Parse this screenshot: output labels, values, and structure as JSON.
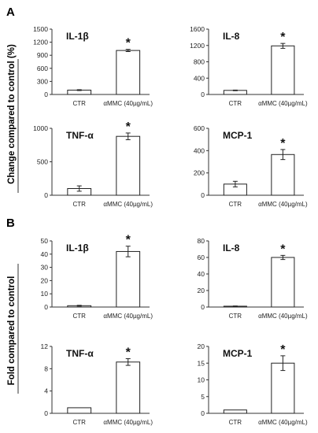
{
  "panels": [
    {
      "letter": "A",
      "ylabel": "Change compared to control (%)"
    },
    {
      "letter": "B",
      "ylabel": "Fold compared to control"
    }
  ],
  "chart_data": [
    {
      "panel": "A",
      "type": "bar",
      "title": "IL-1β",
      "categories": [
        "CTR",
        "αMMC (40µg/mL)"
      ],
      "values": [
        100,
        1010
      ],
      "errors": [
        10,
        25
      ],
      "ylim": [
        0,
        1500
      ],
      "yticks": [
        0,
        300,
        600,
        900,
        1200,
        1500
      ],
      "significance": [
        "",
        "*"
      ]
    },
    {
      "panel": "A",
      "type": "bar",
      "title": "IL-8",
      "categories": [
        "CTR",
        "αMMC (40µg/mL)"
      ],
      "values": [
        100,
        1190
      ],
      "errors": [
        8,
        60
      ],
      "ylim": [
        0,
        1600
      ],
      "yticks": [
        0,
        400,
        800,
        1200,
        1600
      ],
      "significance": [
        "",
        "*"
      ]
    },
    {
      "panel": "A",
      "type": "bar",
      "title": "TNF-α",
      "categories": [
        "CTR",
        "αMMC (40µg/mL)"
      ],
      "values": [
        100,
        880
      ],
      "errors": [
        40,
        50
      ],
      "ylim": [
        0,
        1000
      ],
      "yticks": [
        0,
        500,
        1000
      ],
      "significance": [
        "",
        "*"
      ]
    },
    {
      "panel": "A",
      "type": "bar",
      "title": "MCP-1",
      "categories": [
        "CTR",
        "αMMC (40µg/mL)"
      ],
      "values": [
        100,
        365
      ],
      "errors": [
        25,
        45
      ],
      "ylim": [
        0,
        600
      ],
      "yticks": [
        0,
        200,
        400,
        600
      ],
      "significance": [
        "",
        "*"
      ]
    },
    {
      "panel": "B",
      "type": "bar",
      "title": "IL-1β",
      "categories": [
        "CTR",
        "αMMC (40µg/mL)"
      ],
      "values": [
        1,
        42
      ],
      "errors": [
        0.3,
        4
      ],
      "ylim": [
        0,
        50
      ],
      "yticks": [
        0,
        10,
        20,
        30,
        40,
        50
      ],
      "significance": [
        "",
        "*"
      ]
    },
    {
      "panel": "B",
      "type": "bar",
      "title": "IL-8",
      "categories": [
        "CTR",
        "αMMC (40µg/mL)"
      ],
      "values": [
        1,
        60
      ],
      "errors": [
        0.3,
        2.5
      ],
      "ylim": [
        0,
        80
      ],
      "yticks": [
        0,
        20,
        40,
        60,
        80
      ],
      "significance": [
        "",
        "*"
      ]
    },
    {
      "panel": "B",
      "type": "bar",
      "title": "TNF-α",
      "categories": [
        "CTR",
        "αMMC (40µg/mL)"
      ],
      "values": [
        1,
        9.2
      ],
      "errors": [
        0,
        0.6
      ],
      "ylim": [
        0,
        12
      ],
      "yticks": [
        0,
        4,
        8,
        12
      ],
      "significance": [
        "",
        "*"
      ]
    },
    {
      "panel": "B",
      "type": "bar",
      "title": "MCP-1",
      "categories": [
        "CTR",
        "αMMC (40µg/mL)"
      ],
      "values": [
        1,
        15
      ],
      "errors": [
        0,
        2.2
      ],
      "ylim": [
        0,
        20
      ],
      "yticks": [
        0,
        5,
        10,
        15,
        20
      ],
      "significance": [
        "",
        "*"
      ]
    }
  ]
}
